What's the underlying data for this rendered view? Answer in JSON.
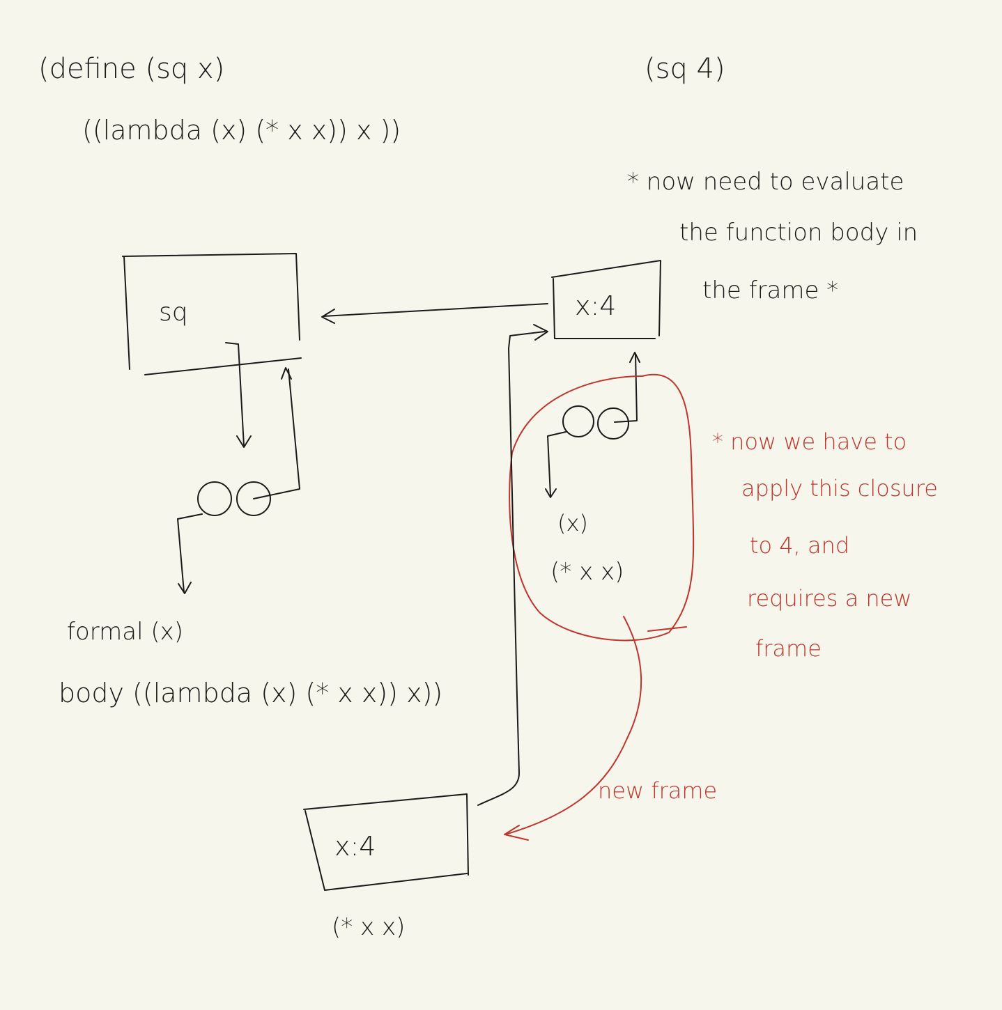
{
  "code": {
    "define_line": "(define (sq x)",
    "body_line": "((lambda (x) (* x x)) x ))",
    "call": "(sq 4)"
  },
  "note_top": {
    "line1": "* now need to evaluate",
    "line2": "the function body in",
    "line3": "the frame *"
  },
  "global_frame": {
    "binding": "sq"
  },
  "procedure_sq": {
    "formal": "formal (x)",
    "body": "body ((lambda (x) (* x x)) x))"
  },
  "frame_e1": {
    "binding": "x:4"
  },
  "lambda_closure": {
    "params": "(x)",
    "body": "(* x x)"
  },
  "note_red": {
    "line1": "* now we have to",
    "line2": "apply this closure",
    "line3": "to 4, and",
    "line4": "requires a new",
    "line5": "frame"
  },
  "new_frame_label": "new frame",
  "frame_e2": {
    "binding": "x:4",
    "body": "(* x x)"
  },
  "colors": {
    "background": "#f6f6ed",
    "ink": "#1a1a1a",
    "red_ink": "#c0342b"
  }
}
